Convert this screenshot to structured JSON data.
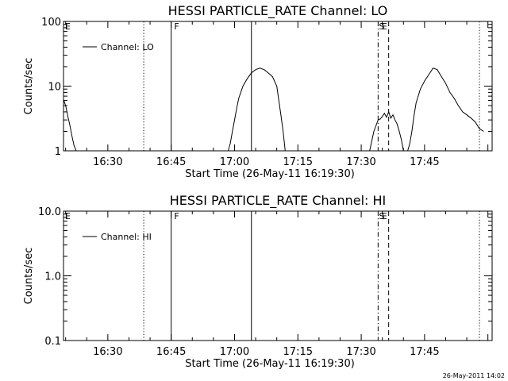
{
  "footer_timestamp": "26-May-2011 14:02",
  "chart_data": [
    {
      "type": "line",
      "title": "HESSI PARTICLE_RATE Channel: LO",
      "xlabel": "Start Time (26-May-11 16:19:30)",
      "ylabel": "Counts/sec",
      "y_scale": "log",
      "ylim": [
        1,
        100
      ],
      "xlim": [
        "16:19:30",
        "18:01:00"
      ],
      "x_ticks": [
        "16:30",
        "16:45",
        "17:00",
        "17:15",
        "17:30",
        "17:45"
      ],
      "y_ticks": [
        "1",
        "10",
        "100"
      ],
      "legend_position": "top-left",
      "series": [
        {
          "name": "Channel: LO",
          "x": [
            "16:19:30",
            "16:20:00",
            "16:20:30",
            "16:21:00",
            "16:21:30",
            "16:22:00",
            "16:22:30",
            "16:58:30",
            "16:59:00",
            "16:59:30",
            "17:00:00",
            "17:00:30",
            "17:01:00",
            "17:02:00",
            "17:03:00",
            "17:04:00",
            "17:05:00",
            "17:06:00",
            "17:07:00",
            "17:08:00",
            "17:09:00",
            "17:10:00",
            "17:10:30",
            "17:11:00",
            "17:11:30",
            "17:12:00",
            "17:32:00",
            "17:33:00",
            "17:34:00",
            "17:34:30",
            "17:35:00",
            "17:35:30",
            "17:36:00",
            "17:36:30",
            "17:37:00",
            "17:37:30",
            "17:38:00",
            "17:38:30",
            "17:39:00",
            "17:39:30",
            "17:40:00",
            "17:41:00",
            "17:41:30",
            "17:42:00",
            "17:42:30",
            "17:43:00",
            "17:44:00",
            "17:45:00",
            "17:46:00",
            "17:47:00",
            "17:48:00",
            "17:49:00",
            "17:50:00",
            "17:51:00",
            "17:52:00",
            "17:53:00",
            "17:54:00",
            "17:55:00",
            "17:56:00",
            "17:57:00",
            "17:58:00",
            "17:59:00"
          ],
          "y": [
            6.2,
            5,
            3.5,
            2.5,
            1.7,
            1.2,
            1,
            1,
            1.3,
            2,
            3,
            4.5,
            6.5,
            10,
            13,
            16,
            18,
            19,
            18,
            16,
            14,
            10,
            6,
            3.5,
            2,
            1,
            1,
            2,
            3,
            3.1,
            3.4,
            3.8,
            3.3,
            4,
            3.2,
            3.6,
            3,
            2.6,
            2,
            1.5,
            1,
            1,
            1.3,
            2,
            3.5,
            5.5,
            9,
            12,
            15,
            19,
            18,
            14,
            11,
            8,
            6.5,
            5,
            4,
            3.6,
            3.2,
            2.8,
            2.2,
            2
          ],
          "color": "#000000"
        }
      ],
      "annotations": [
        {
          "type": "marker_text",
          "x": "16:19:40",
          "label": "E"
        },
        {
          "type": "marker_text",
          "x": "16:45:30",
          "label": "F"
        },
        {
          "type": "marker_text",
          "x": "17:34:00",
          "label": "S"
        },
        {
          "type": "marker_text",
          "x": "17:34:40",
          "label": "E"
        },
        {
          "type": "vline",
          "x": "16:38:30",
          "style": "dotted"
        },
        {
          "type": "vline",
          "x": "16:45:00",
          "style": "solid"
        },
        {
          "type": "vline",
          "x": "17:04:00",
          "style": "solid"
        },
        {
          "type": "vline",
          "x": "17:34:00",
          "style": "dashdot"
        },
        {
          "type": "vline",
          "x": "17:36:30",
          "style": "dashed"
        },
        {
          "type": "vline",
          "x": "17:58:00",
          "style": "dotted"
        }
      ]
    },
    {
      "type": "line",
      "title": "HESSI PARTICLE_RATE Channel: HI",
      "xlabel": "Start Time (26-May-11 16:19:30)",
      "ylabel": "Counts/sec",
      "y_scale": "log",
      "ylim": [
        0.1,
        10
      ],
      "xlim": [
        "16:19:30",
        "18:01:00"
      ],
      "x_ticks": [
        "16:30",
        "16:45",
        "17:00",
        "17:15",
        "17:30",
        "17:45"
      ],
      "y_ticks": [
        "0.1",
        "1.0",
        "10.0"
      ],
      "legend_position": "top-left",
      "series": [
        {
          "name": "Channel: HI",
          "x": [],
          "y": [],
          "color": "#000000"
        }
      ],
      "annotations": [
        {
          "type": "marker_text",
          "x": "16:19:40",
          "label": "E"
        },
        {
          "type": "marker_text",
          "x": "16:45:30",
          "label": "F"
        },
        {
          "type": "marker_text",
          "x": "17:34:00",
          "label": "S"
        },
        {
          "type": "marker_text",
          "x": "17:34:40",
          "label": "E"
        },
        {
          "type": "vline",
          "x": "16:38:30",
          "style": "dotted"
        },
        {
          "type": "vline",
          "x": "16:45:00",
          "style": "solid"
        },
        {
          "type": "vline",
          "x": "17:04:00",
          "style": "solid"
        },
        {
          "type": "vline",
          "x": "17:34:00",
          "style": "dashdot"
        },
        {
          "type": "vline",
          "x": "17:36:30",
          "style": "dashed"
        },
        {
          "type": "vline",
          "x": "17:58:00",
          "style": "dotted"
        }
      ]
    }
  ]
}
